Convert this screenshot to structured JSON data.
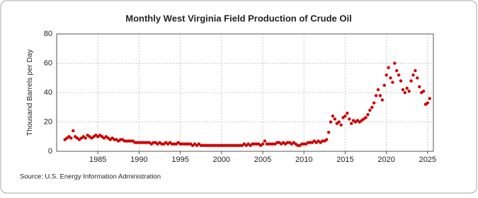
{
  "chart_data": {
    "type": "scatter",
    "title": "Monthly West Virginia Field Production of Crude Oil",
    "y_label": "Thousand Barrels per Day",
    "source": "Source: U.S. Energy Information Administration",
    "color": "#cc0000",
    "grid": true,
    "xlim": [
      1980,
      2025.7
    ],
    "xticks": [
      1985,
      1990,
      1995,
      2000,
      2005,
      2010,
      2015,
      2020,
      2025
    ],
    "ylim": [
      0,
      80
    ],
    "yticks": [
      0,
      20,
      40,
      60,
      80
    ],
    "x": [
      1981,
      1981.25,
      1981.5,
      1981.75,
      1982,
      1982.25,
      1982.5,
      1982.75,
      1983,
      1983.25,
      1983.5,
      1983.75,
      1984,
      1984.25,
      1984.5,
      1984.75,
      1985,
      1985.25,
      1985.5,
      1985.75,
      1986,
      1986.25,
      1986.5,
      1986.75,
      1987,
      1987.25,
      1987.5,
      1987.75,
      1988,
      1988.25,
      1988.5,
      1988.75,
      1989,
      1989.25,
      1989.5,
      1989.75,
      1990,
      1990.25,
      1990.5,
      1990.75,
      1991,
      1991.25,
      1991.5,
      1991.75,
      1992,
      1992.25,
      1992.5,
      1992.75,
      1993,
      1993.25,
      1993.5,
      1993.75,
      1994,
      1994.25,
      1994.5,
      1994.75,
      1995,
      1995.25,
      1995.5,
      1995.75,
      1996,
      1996.25,
      1996.5,
      1996.75,
      1997,
      1997.25,
      1997.5,
      1997.75,
      1998,
      1998.25,
      1998.5,
      1998.75,
      1999,
      1999.25,
      1999.5,
      1999.75,
      2000,
      2000.25,
      2000.5,
      2000.75,
      2001,
      2001.25,
      2001.5,
      2001.75,
      2002,
      2002.25,
      2002.5,
      2002.75,
      2003,
      2003.25,
      2003.5,
      2003.75,
      2004,
      2004.25,
      2004.5,
      2004.75,
      2005,
      2005.25,
      2005.5,
      2005.75,
      2006,
      2006.25,
      2006.5,
      2006.75,
      2007,
      2007.25,
      2007.5,
      2007.75,
      2008,
      2008.25,
      2008.5,
      2008.75,
      2009,
      2009.25,
      2009.5,
      2009.75,
      2010,
      2010.25,
      2010.5,
      2010.75,
      2011,
      2011.25,
      2011.5,
      2011.75,
      2012,
      2012.25,
      2012.5,
      2012.75,
      2013,
      2013.25,
      2013.5,
      2013.75,
      2014,
      2014.25,
      2014.5,
      2014.75,
      2015,
      2015.25,
      2015.5,
      2015.75,
      2016,
      2016.25,
      2016.5,
      2016.75,
      2017,
      2017.25,
      2017.5,
      2017.75,
      2018,
      2018.25,
      2018.5,
      2018.75,
      2019,
      2019.25,
      2019.5,
      2019.75,
      2020,
      2020.25,
      2020.5,
      2020.75,
      2021,
      2021.25,
      2021.5,
      2021.75,
      2022,
      2022.25,
      2022.5,
      2022.75,
      2023,
      2023.25,
      2023.5,
      2023.75,
      2024,
      2024.25,
      2024.5,
      2024.75,
      2025,
      2025.25
    ],
    "values": [
      8,
      9,
      10,
      9,
      14,
      10,
      9,
      8,
      9,
      10,
      9,
      11,
      10,
      9,
      10,
      11,
      10,
      11,
      10,
      9,
      10,
      9,
      8,
      9,
      8,
      8,
      7,
      8,
      8,
      7,
      7,
      7,
      7,
      7,
      6,
      6,
      6,
      6,
      6,
      6,
      6,
      6,
      5,
      6,
      6,
      5,
      6,
      5,
      5,
      6,
      5,
      6,
      5,
      5,
      5,
      6,
      5,
      5,
      5,
      5,
      5,
      5,
      4,
      5,
      4,
      5,
      4,
      4,
      4,
      4,
      4,
      4,
      4,
      4,
      4,
      4,
      4,
      4,
      4,
      4,
      4,
      4,
      4,
      4,
      4,
      4,
      4,
      5,
      4,
      5,
      4,
      5,
      5,
      5,
      5,
      4,
      5,
      7,
      5,
      5,
      5,
      5,
      5,
      6,
      6,
      5,
      6,
      5,
      6,
      6,
      5,
      6,
      5,
      4,
      4,
      5,
      5,
      5,
      6,
      6,
      6,
      7,
      6,
      7,
      6,
      7,
      7,
      8,
      13,
      20,
      24,
      22,
      19,
      20,
      18,
      23,
      24,
      26,
      22,
      19,
      21,
      20,
      21,
      20,
      21,
      22,
      23,
      25,
      28,
      30,
      33,
      38,
      42,
      38,
      35,
      45,
      52,
      57,
      50,
      47,
      60,
      55,
      52,
      48,
      42,
      40,
      43,
      41,
      48,
      52,
      55,
      50,
      44,
      40,
      41,
      32,
      33,
      36
    ]
  }
}
